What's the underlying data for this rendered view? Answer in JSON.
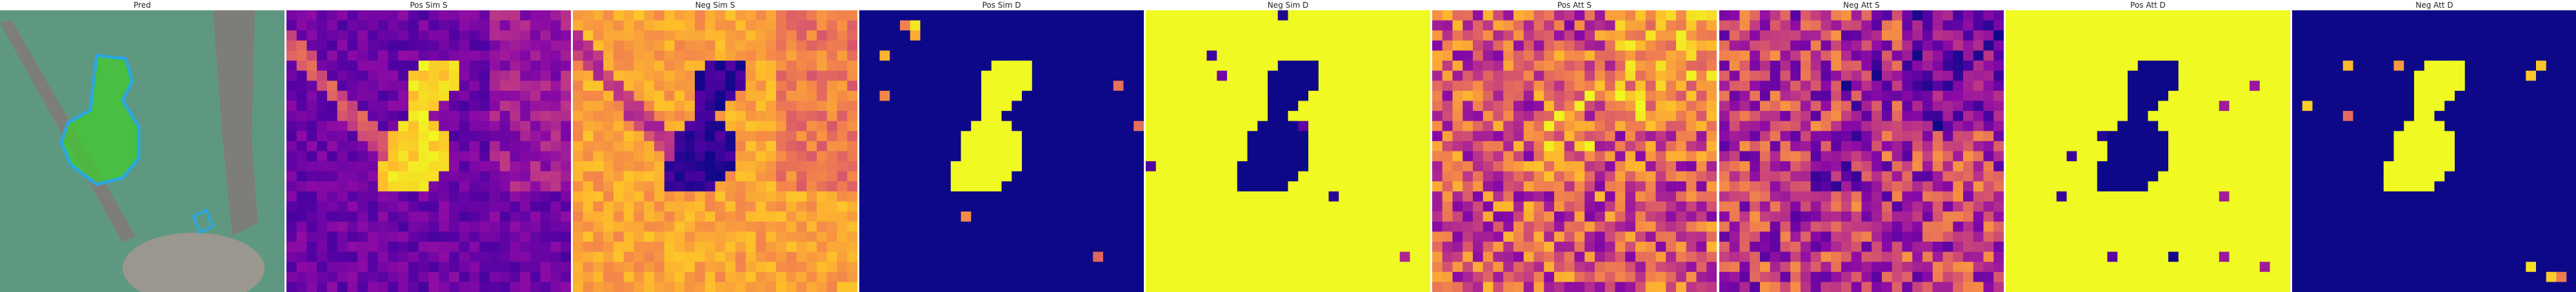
{
  "figure": {
    "panels": [
      {
        "title": "Pred",
        "kind": "image",
        "palette": "photo"
      },
      {
        "title": "Pos Sim S",
        "kind": "heatmap",
        "palette": "plasma",
        "invert": false
      },
      {
        "title": "Neg Sim S",
        "kind": "heatmap",
        "palette": "plasma",
        "invert": true
      },
      {
        "title": "Pos Sim D",
        "kind": "heatmap",
        "palette": "plasma-binary",
        "invert": false
      },
      {
        "title": "Neg Sim D",
        "kind": "heatmap",
        "palette": "plasma-binary",
        "invert": true
      },
      {
        "title": "Pos Att S",
        "kind": "heatmap",
        "palette": "plasma-noisy",
        "invert": false
      },
      {
        "title": "Neg Att S",
        "kind": "heatmap",
        "palette": "plasma-noisy",
        "invert": true
      },
      {
        "title": "Pos Att D",
        "kind": "heatmap",
        "palette": "plasma-binary",
        "invert": true
      },
      {
        "title": "Neg Att D",
        "kind": "heatmap",
        "palette": "plasma-binary",
        "invert": false
      }
    ]
  },
  "colors": {
    "plasma_low": "#0d0887",
    "plasma_mid": "#cc4778",
    "plasma_high": "#f0f921",
    "photo_bg": "#5f9880",
    "mask_fill": "#3ecf2a",
    "mask_outline": "#2aa7e0",
    "branch": "#7d7e78",
    "nest": "#9a978e"
  },
  "icons": {
    "pred_overlay": "bird-segmentation-mask"
  }
}
